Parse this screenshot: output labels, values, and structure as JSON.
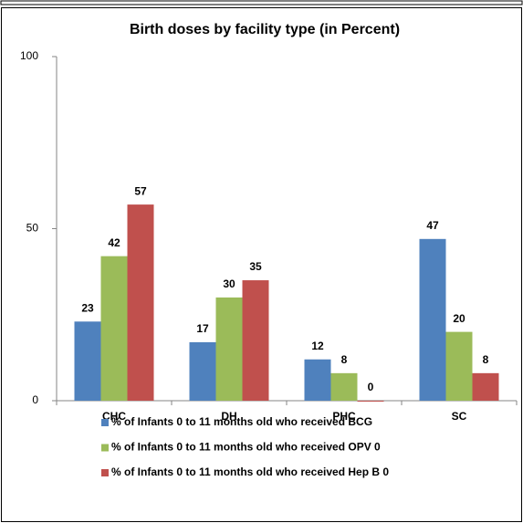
{
  "chart_data": {
    "type": "bar",
    "title": "Birth doses by facility type (in Percent)",
    "categories": [
      "CHC",
      "DH",
      "PHC",
      "SC"
    ],
    "series": [
      {
        "name": "% of Infants 0 to 11 months old who received BCG",
        "color": "#4f81bd",
        "values": [
          23,
          17,
          12,
          47
        ]
      },
      {
        "name": "% of Infants 0 to 11 months old who received OPV 0",
        "color": "#9bbb59",
        "values": [
          42,
          30,
          8,
          20
        ]
      },
      {
        "name": "% of Infants 0 to 11 months old who received Hep B 0",
        "color": "#c0504d",
        "values": [
          57,
          35,
          0,
          8
        ]
      }
    ],
    "ylim": [
      0,
      100
    ],
    "yticks": [
      0,
      50,
      100
    ],
    "grid": false
  }
}
